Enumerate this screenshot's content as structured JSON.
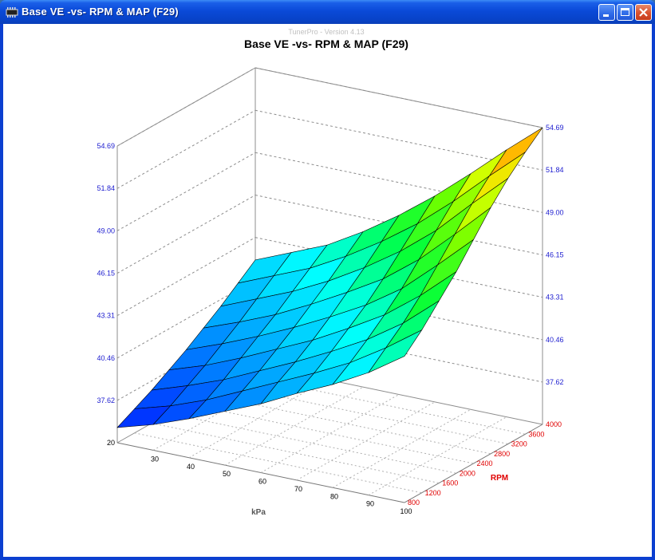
{
  "window": {
    "title": "Base VE -vs- RPM & MAP (F29)"
  },
  "icons": {
    "app": "chip-icon",
    "minimize": "minimize-icon",
    "maximize": "maximize-icon",
    "close": "close-icon"
  },
  "colors": {
    "titlebar": "#0a4ad8",
    "z_tick_text": "#2020d0",
    "rpm_text": "#e00000",
    "kpa_text": "#000000"
  },
  "chart_data": {
    "type": "surface",
    "watermark": "TunerPro - Version 4.13",
    "title": "Base VE -vs- RPM & MAP (F29)",
    "xlabel": "kPa",
    "ylabel": "RPM",
    "x_ticks": [
      "20",
      "30",
      "40",
      "50",
      "60",
      "70",
      "80",
      "90",
      "100"
    ],
    "y_ticks": [
      "800",
      "1200",
      "1600",
      "2000",
      "2400",
      "2800",
      "3200",
      "3600",
      "4000"
    ],
    "z_ticks": [
      "37.62",
      "40.46",
      "43.31",
      "46.15",
      "49.00",
      "51.84",
      "54.69"
    ],
    "zlim": [
      34.78,
      54.69
    ],
    "grid": true,
    "colormap": "blue-cyan-green-yellow-red",
    "values": [
      [
        35.8,
        36.5,
        37.4,
        38.4,
        39.4,
        40.6,
        41.7,
        43.0,
        44.6
      ],
      [
        36.4,
        37.1,
        38.0,
        39.1,
        40.2,
        41.3,
        42.5,
        44.0,
        45.7
      ],
      [
        37.0,
        37.8,
        38.7,
        39.8,
        40.9,
        42.1,
        43.4,
        45.0,
        47.0
      ],
      [
        37.7,
        38.5,
        39.5,
        40.6,
        41.7,
        43.0,
        44.4,
        46.2,
        48.3
      ],
      [
        38.4,
        39.3,
        40.3,
        41.4,
        42.6,
        43.9,
        45.5,
        47.6,
        49.8
      ],
      [
        39.2,
        40.1,
        41.1,
        42.3,
        43.6,
        45.0,
        46.8,
        49.0,
        51.3
      ],
      [
        40.0,
        41.0,
        42.0,
        43.2,
        44.6,
        46.2,
        48.1,
        50.4,
        52.6
      ],
      [
        40.9,
        41.9,
        42.9,
        44.2,
        45.7,
        47.4,
        49.4,
        51.6,
        53.7
      ],
      [
        41.8,
        42.8,
        43.8,
        45.2,
        46.8,
        48.6,
        50.6,
        52.7,
        54.69
      ]
    ]
  }
}
